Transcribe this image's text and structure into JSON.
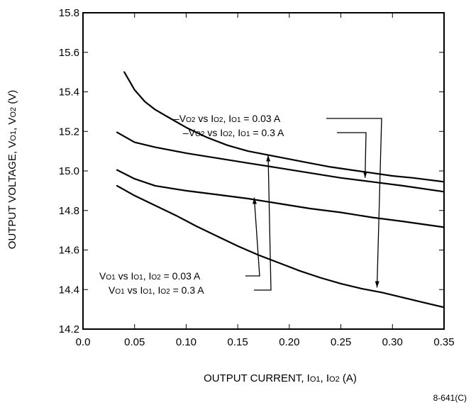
{
  "chart_data": {
    "type": "line",
    "xlabel": "OUTPUT CURRENT, IO1, IO2 (A)",
    "ylabel": "OUTPUT VOLTAGE, VO1, VO2 (V)",
    "xlim": [
      0.0,
      0.35
    ],
    "ylim": [
      14.2,
      15.8
    ],
    "x_ticks": [
      "0.0",
      "0.05",
      "0.10",
      "0.15",
      "0.20",
      "0.25",
      "0.30",
      "0.35"
    ],
    "y_ticks": [
      "14.2",
      "14.4",
      "14.6",
      "14.8",
      "15.0",
      "15.2",
      "15.4",
      "15.6",
      "15.8"
    ],
    "grid": false,
    "series": [
      {
        "name": "–VO2 vs IO2, IO1 = 0.03 A",
        "x": [
          0.04,
          0.05,
          0.06,
          0.07,
          0.08,
          0.1,
          0.12,
          0.14,
          0.16,
          0.18,
          0.2,
          0.22,
          0.24,
          0.26,
          0.28,
          0.3,
          0.32,
          0.35
        ],
        "y": [
          15.5,
          15.41,
          15.35,
          15.31,
          15.28,
          15.22,
          15.17,
          15.13,
          15.1,
          15.08,
          15.06,
          15.04,
          15.02,
          15.005,
          14.99,
          14.975,
          14.965,
          14.945
        ]
      },
      {
        "name": "–VO2 vs IO2, IO1 = 0.3 A",
        "x": [
          0.033,
          0.05,
          0.07,
          0.1,
          0.13,
          0.16,
          0.19,
          0.22,
          0.25,
          0.28,
          0.31,
          0.35
        ],
        "y": [
          15.195,
          15.145,
          15.12,
          15.09,
          15.065,
          15.04,
          15.015,
          14.99,
          14.965,
          14.945,
          14.925,
          14.895
        ]
      },
      {
        "name": "VO1 vs IO1, IO2 = 0.03 A",
        "x": [
          0.033,
          0.05,
          0.07,
          0.1,
          0.13,
          0.16,
          0.19,
          0.22,
          0.25,
          0.28,
          0.31,
          0.35
        ],
        "y": [
          15.005,
          14.96,
          14.925,
          14.9,
          14.88,
          14.86,
          14.835,
          14.81,
          14.79,
          14.765,
          14.745,
          14.715
        ]
      },
      {
        "name": "VO1 vs IO1, IO2 = 0.3 A",
        "x": [
          0.033,
          0.05,
          0.07,
          0.09,
          0.11,
          0.13,
          0.15,
          0.17,
          0.19,
          0.21,
          0.23,
          0.25,
          0.27,
          0.29,
          0.31,
          0.33,
          0.35
        ],
        "y": [
          14.925,
          14.875,
          14.825,
          14.775,
          14.72,
          14.67,
          14.62,
          14.575,
          14.535,
          14.495,
          14.46,
          14.43,
          14.405,
          14.385,
          14.36,
          14.335,
          14.31
        ]
      }
    ],
    "annotations": [
      {
        "text": "–VO2 vs IO2, IO1 = 0.03 A",
        "x_end": 0.285,
        "y_end": 14.41
      },
      {
        "text": "–VO2 vs IO2, IO1 = 0.3 A",
        "x_end": 0.2735,
        "y_end": 14.965
      },
      {
        "text": "VO1 vs IO1, IO2 = 0.03 A",
        "x_end": 0.166,
        "y_end": 14.865
      },
      {
        "text": "VO1 vs IO1, IO2 = 0.3 A",
        "x_end": 0.1795,
        "y_end": 15.08
      }
    ],
    "figure_id": "8-641(C)"
  }
}
